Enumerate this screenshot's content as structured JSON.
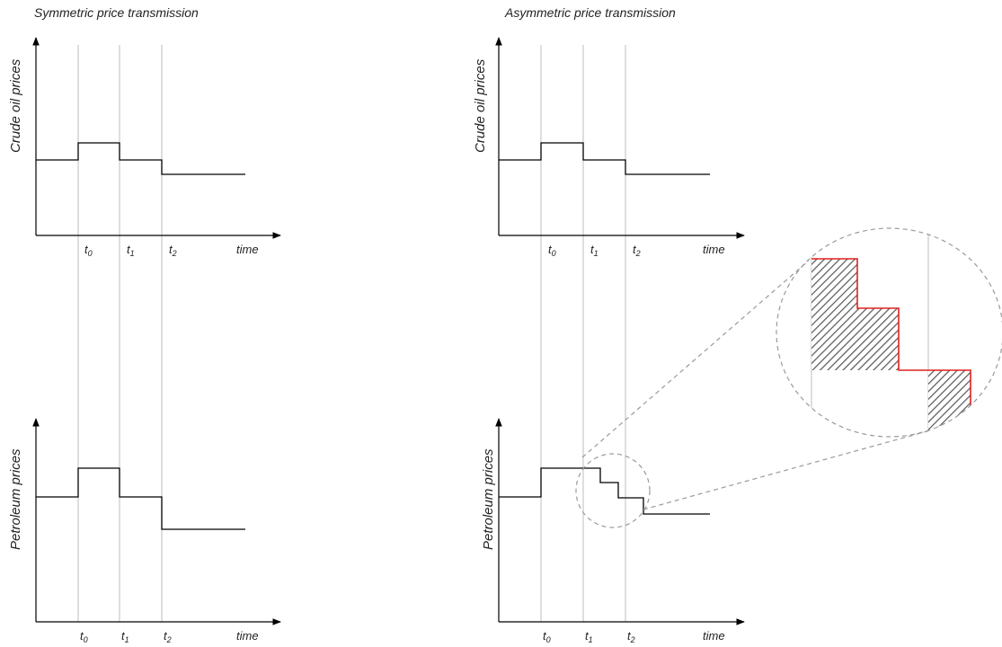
{
  "panels": {
    "symmetric": {
      "title": "Symmetric price transmission",
      "crude_ylabel": "Crude oil prices",
      "petroleum_ylabel": "Petroleum  prices"
    },
    "asymmetric": {
      "title": "Asymmetric price transmission",
      "crude_ylabel": "Crude oil prices",
      "petroleum_ylabel": "Petroleum  prices"
    }
  },
  "axis": {
    "t_letter": "t",
    "subscripts": [
      "0",
      "1",
      "2"
    ],
    "time_label": "time"
  }
}
